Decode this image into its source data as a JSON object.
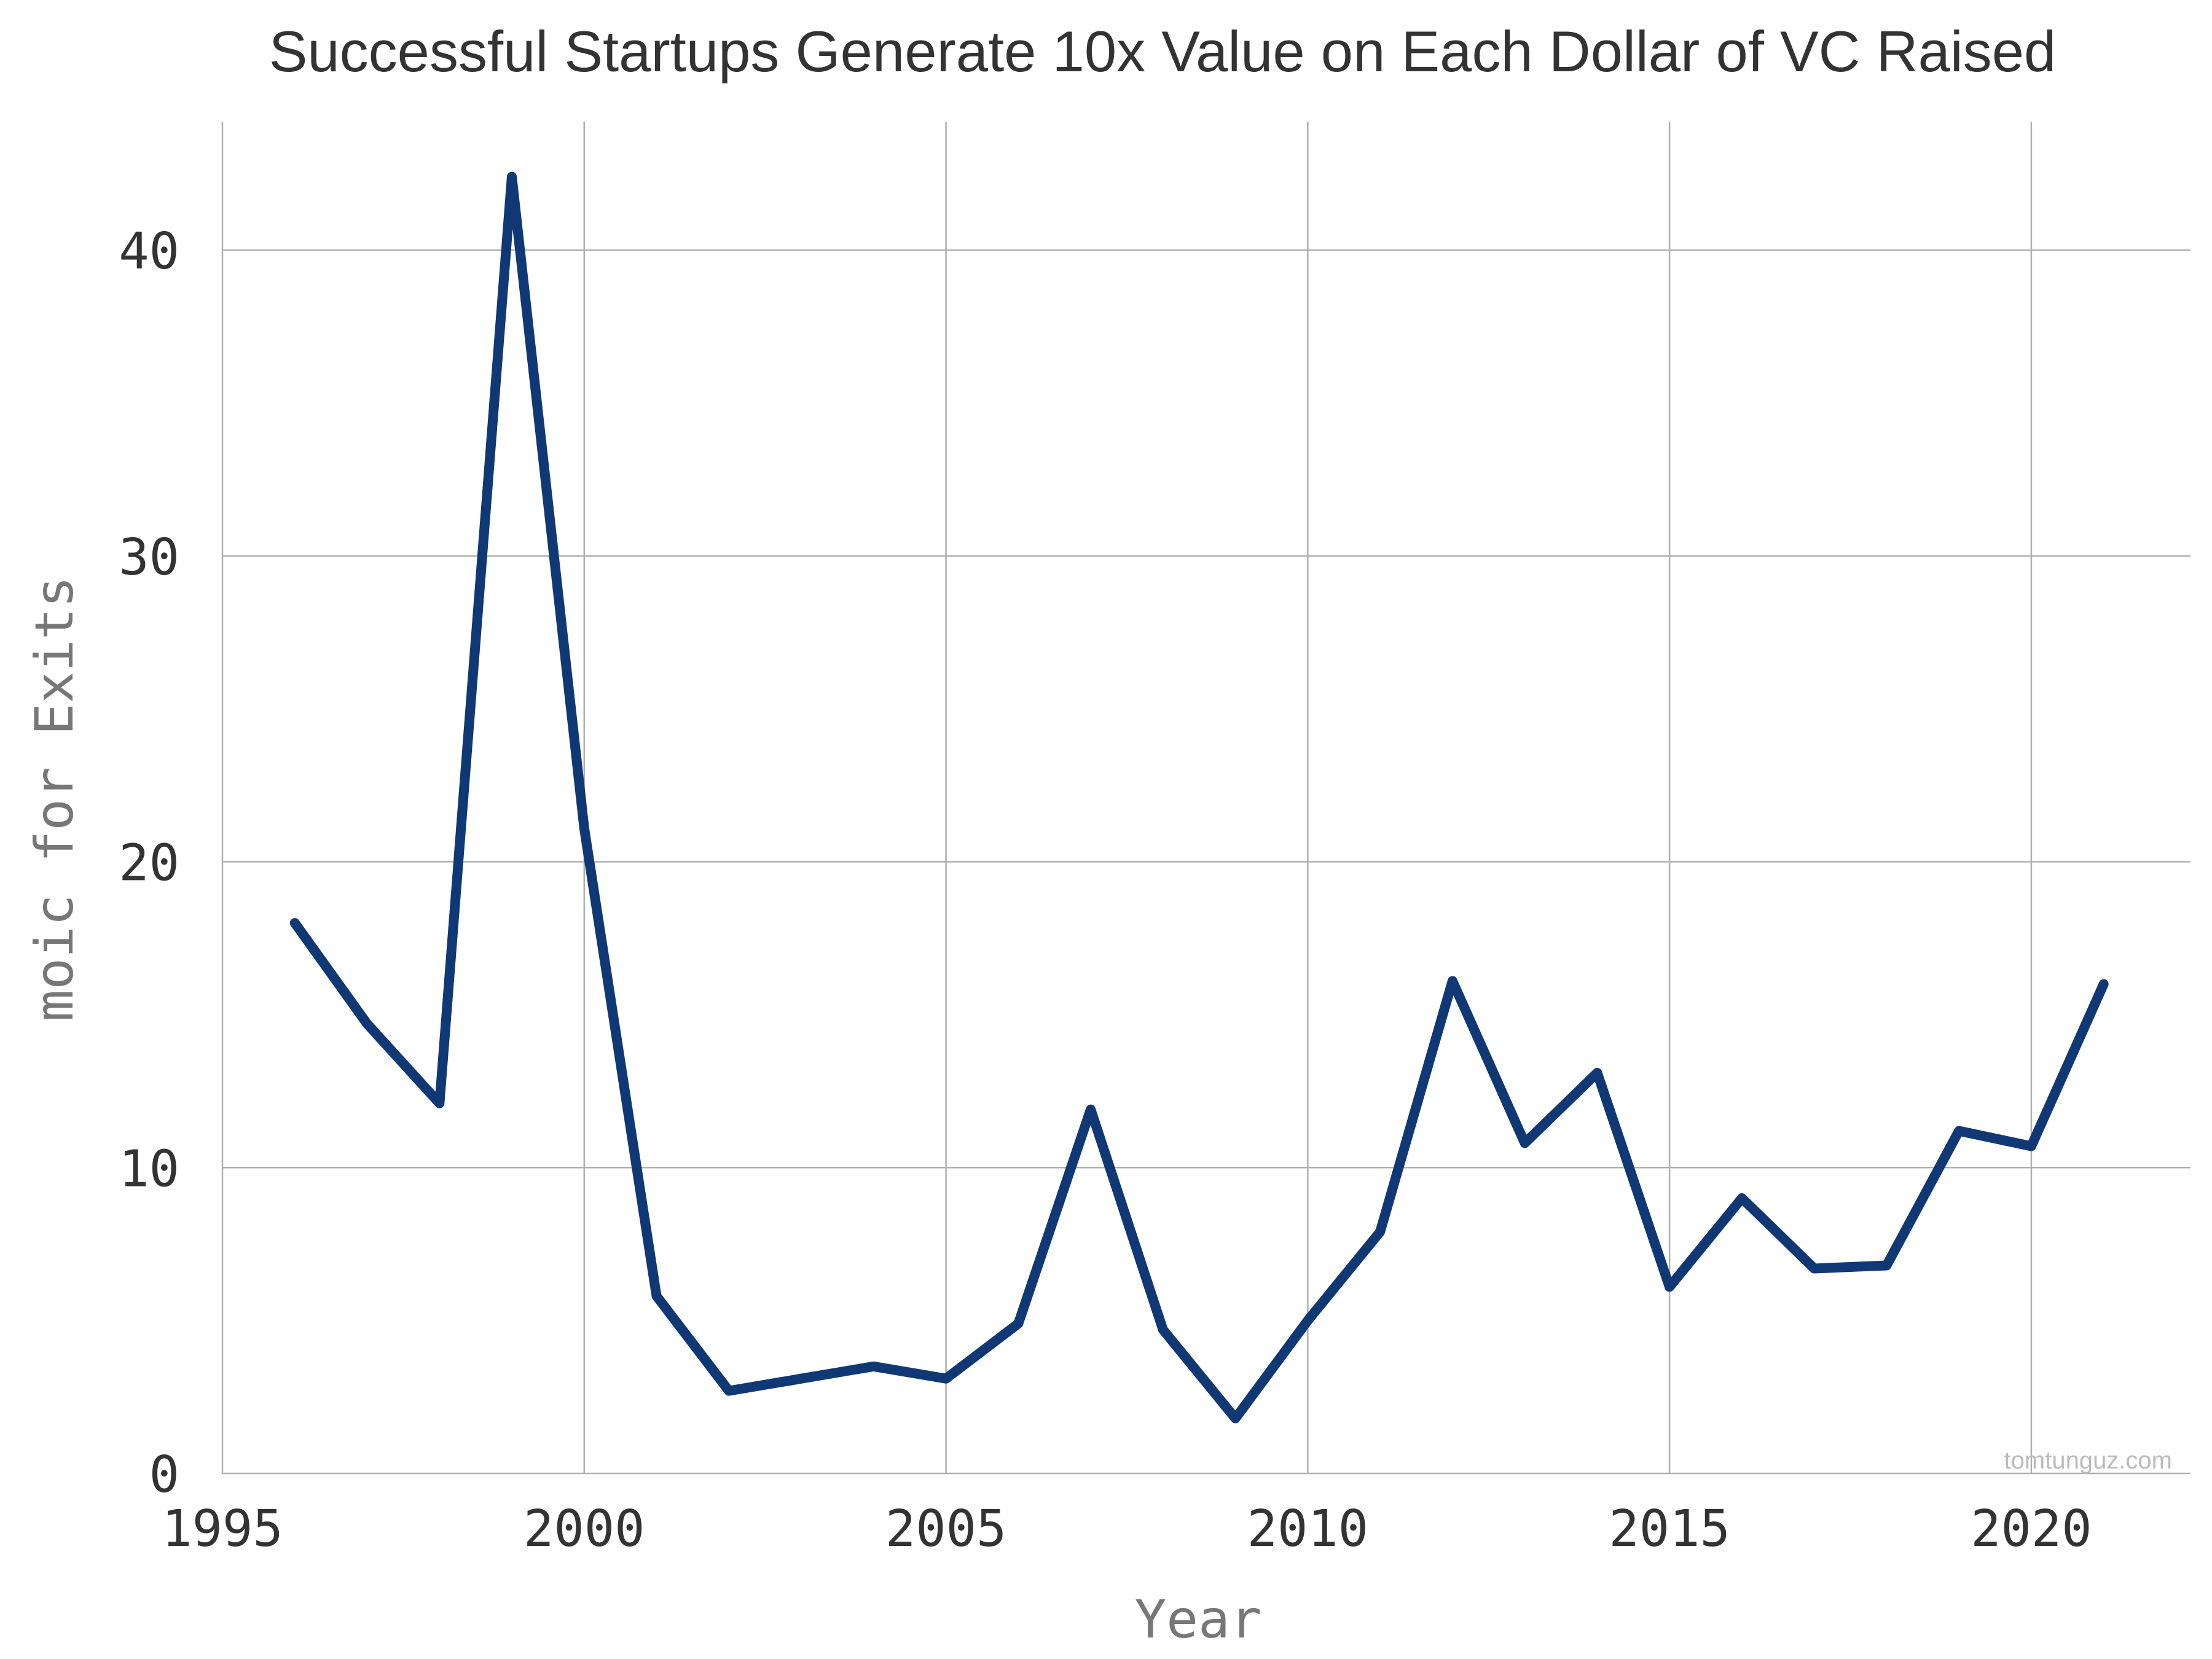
{
  "chart_data": {
    "type": "line",
    "title": "Successful Startups Generate 10x Value on Each Dollar of VC Raised",
    "xlabel": "Year",
    "ylabel": "moic for Exits",
    "xlim": [
      1995,
      2022.2
    ],
    "ylim": [
      0,
      44.2
    ],
    "x_ticks": [
      1995,
      2000,
      2005,
      2010,
      2015,
      2020
    ],
    "y_ticks": [
      0,
      10,
      20,
      30,
      40
    ],
    "grid": true,
    "legend": "none",
    "series": [
      {
        "color": "#0f3875",
        "x": [
          1996,
          1997,
          1998,
          1999,
          2000,
          2001,
          2002,
          2003,
          2004,
          2005,
          2006,
          2007,
          2008,
          2009,
          2010,
          2011,
          2012,
          2013,
          2014,
          2015,
          2016,
          2017,
          2018,
          2019,
          2020,
          2021
        ],
        "y": [
          18.0,
          14.7,
          12.1,
          42.4,
          21.1,
          5.8,
          2.7,
          3.1,
          3.5,
          3.1,
          4.9,
          11.9,
          4.7,
          1.8,
          5.0,
          7.9,
          16.1,
          10.8,
          13.1,
          6.1,
          9.0,
          6.7,
          6.8,
          11.2,
          10.7,
          16.0
        ]
      }
    ],
    "watermark": "tomtunguz.com"
  }
}
